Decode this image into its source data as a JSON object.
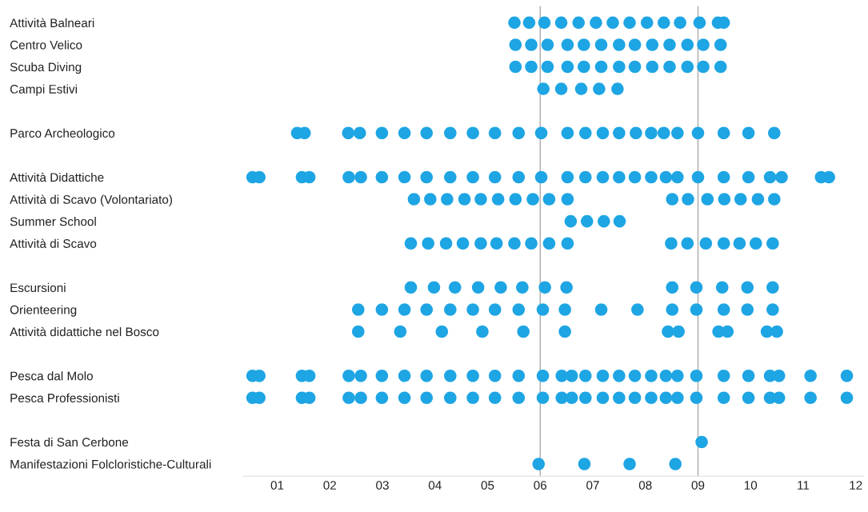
{
  "chart_data": {
    "type": "scatter",
    "orientation": "horizontal",
    "marker": "circle",
    "grid": false,
    "legend": false,
    "categories": [
      "Attività Balneari",
      "Centro Velico",
      "Scuba Diving",
      "Campi Estivi",
      null,
      "Parco Archeologico",
      null,
      "Attività Didattiche",
      "Attività di Scavo (Volontariato)",
      "Summer School",
      "Attività di Scavo",
      null,
      "Escursioni",
      "Orienteering",
      "Attività didattiche nel Bosco",
      null,
      "Pesca dal Molo",
      "Pesca Professionisti",
      null,
      "Festa di San Cerbone",
      "Manifestazioni Folcloristiche-Culturali"
    ],
    "xlim": [
      0.35,
      12.15
    ],
    "xticks": [
      {
        "value": 1,
        "label": "01"
      },
      {
        "value": 2,
        "label": "02"
      },
      {
        "value": 3,
        "label": "03"
      },
      {
        "value": 4,
        "label": "04"
      },
      {
        "value": 5,
        "label": "05"
      },
      {
        "value": 6,
        "label": "06"
      },
      {
        "value": 7,
        "label": "07"
      },
      {
        "value": 8,
        "label": "08"
      },
      {
        "value": 9,
        "label": "09"
      },
      {
        "value": 10,
        "label": "10"
      },
      {
        "value": 11,
        "label": "11"
      },
      {
        "value": 12,
        "label": "12"
      }
    ],
    "ref_lines": [
      {
        "axis": "x",
        "value": 6,
        "color": "#aaaaaa"
      },
      {
        "axis": "x",
        "value": 9,
        "color": "#aaaaaa"
      }
    ],
    "series": [
      {
        "color": "#1ea5e3",
        "values": [
          5.51,
          5.53,
          5.53,
          6.06,
          null,
          1.38,
          null,
          0.53,
          3.6,
          6.58,
          3.54,
          null,
          3.54,
          2.54,
          2.54,
          null,
          0.53,
          0.53,
          null,
          9.07,
          5.97
        ]
      },
      {
        "color": "#1ea5e3",
        "values": [
          5.79,
          5.83,
          5.83,
          6.4,
          null,
          1.52,
          null,
          0.66,
          3.91,
          6.89,
          3.87,
          null,
          3.98,
          2.99,
          3.34,
          null,
          0.66,
          0.66,
          null,
          null,
          6.84
        ]
      },
      {
        "color": "#1ea5e3",
        "values": [
          6.08,
          6.14,
          6.14,
          6.78,
          null,
          2.35,
          null,
          1.47,
          4.23,
          7.21,
          4.21,
          null,
          4.38,
          3.42,
          4.13,
          null,
          1.47,
          1.47,
          null,
          null,
          7.7
        ]
      },
      {
        "color": "#1ea5e3",
        "values": [
          6.4,
          6.52,
          6.52,
          7.12,
          null,
          2.57,
          null,
          1.61,
          4.56,
          7.51,
          4.53,
          null,
          4.82,
          3.84,
          4.9,
          null,
          1.61,
          1.61,
          null,
          null,
          8.57
        ]
      },
      {
        "color": "#1ea5e3",
        "values": [
          6.73,
          6.83,
          6.83,
          7.47,
          null,
          2.99,
          null,
          2.36,
          4.87,
          null,
          4.87,
          null,
          5.25,
          4.29,
          5.68,
          null,
          2.36,
          2.36,
          null,
          null,
          null
        ]
      },
      {
        "color": "#1ea5e3",
        "values": [
          7.06,
          7.16,
          7.16,
          null,
          null,
          3.42,
          null,
          2.59,
          5.2,
          null,
          5.17,
          null,
          5.66,
          4.72,
          6.47,
          null,
          2.59,
          2.59,
          null,
          null,
          null
        ]
      },
      {
        "color": "#1ea5e3",
        "values": [
          7.38,
          7.5,
          7.5,
          null,
          null,
          3.84,
          null,
          2.99,
          5.53,
          null,
          5.51,
          null,
          6.09,
          5.14,
          8.43,
          null,
          2.99,
          2.99,
          null,
          null,
          null
        ]
      },
      {
        "color": "#1ea5e3",
        "values": [
          7.7,
          7.8,
          7.8,
          null,
          null,
          4.29,
          null,
          3.42,
          5.86,
          null,
          5.83,
          null,
          6.5,
          5.59,
          8.63,
          null,
          3.42,
          3.42,
          null,
          null,
          null
        ]
      },
      {
        "color": "#1ea5e3",
        "values": [
          8.03,
          8.13,
          8.13,
          null,
          null,
          4.72,
          null,
          3.84,
          6.17,
          null,
          6.17,
          null,
          8.51,
          6.05,
          9.39,
          null,
          3.84,
          3.84,
          null,
          null,
          null
        ]
      },
      {
        "color": "#1ea5e3",
        "values": [
          8.35,
          8.46,
          8.46,
          null,
          null,
          5.14,
          null,
          4.29,
          6.52,
          null,
          6.52,
          null,
          8.97,
          6.47,
          9.56,
          null,
          4.29,
          4.29,
          null,
          null,
          null
        ]
      },
      {
        "color": "#1ea5e3",
        "values": [
          8.66,
          8.8,
          8.8,
          null,
          null,
          5.59,
          null,
          4.72,
          8.51,
          null,
          8.49,
          null,
          9.46,
          7.16,
          10.31,
          null,
          4.72,
          4.72,
          null,
          null,
          null
        ]
      },
      {
        "color": "#1ea5e3",
        "values": [
          9.03,
          9.1,
          9.1,
          null,
          null,
          6.02,
          null,
          5.14,
          8.81,
          null,
          8.8,
          null,
          9.94,
          7.85,
          10.5,
          null,
          5.14,
          5.14,
          null,
          null,
          null
        ]
      },
      {
        "color": "#1ea5e3",
        "values": [
          9.38,
          9.43,
          9.43,
          null,
          null,
          6.52,
          null,
          5.59,
          9.18,
          null,
          9.15,
          null,
          10.42,
          8.51,
          null,
          null,
          5.59,
          5.59,
          null,
          null,
          null
        ]
      },
      {
        "color": "#1ea5e3",
        "values": [
          9.49,
          null,
          null,
          null,
          null,
          6.86,
          null,
          6.02,
          9.5,
          null,
          9.49,
          null,
          null,
          8.97,
          null,
          null,
          6.05,
          6.05,
          null,
          null,
          null
        ]
      },
      {
        "color": "#1ea5e3",
        "values": [
          null,
          null,
          null,
          null,
          null,
          7.19,
          null,
          6.52,
          9.81,
          null,
          9.79,
          null,
          null,
          9.49,
          null,
          null,
          6.41,
          6.41,
          null,
          null,
          null
        ]
      },
      {
        "color": "#1ea5e3",
        "values": [
          null,
          null,
          null,
          null,
          null,
          7.5,
          null,
          6.86,
          10.14,
          null,
          10.1,
          null,
          null,
          9.94,
          null,
          null,
          6.6,
          6.6,
          null,
          null,
          null
        ]
      },
      {
        "color": "#1ea5e3",
        "values": [
          null,
          null,
          null,
          null,
          null,
          7.82,
          null,
          7.19,
          10.45,
          null,
          10.42,
          null,
          null,
          10.42,
          null,
          null,
          6.86,
          6.86,
          null,
          null,
          null
        ]
      },
      {
        "color": "#1ea5e3",
        "values": [
          null,
          null,
          null,
          null,
          null,
          8.11,
          null,
          7.5,
          null,
          null,
          null,
          null,
          null,
          null,
          null,
          null,
          7.19,
          7.19,
          null,
          null,
          null
        ]
      },
      {
        "color": "#1ea5e3",
        "values": [
          null,
          null,
          null,
          null,
          null,
          8.35,
          null,
          7.8,
          null,
          null,
          null,
          null,
          null,
          null,
          null,
          null,
          7.5,
          7.5,
          null,
          null,
          null
        ]
      },
      {
        "color": "#1ea5e3",
        "values": [
          null,
          null,
          null,
          null,
          null,
          8.61,
          null,
          8.11,
          null,
          null,
          null,
          null,
          null,
          null,
          null,
          null,
          7.8,
          7.8,
          null,
          null,
          null
        ]
      },
      {
        "color": "#1ea5e3",
        "values": [
          null,
          null,
          null,
          null,
          null,
          9.0,
          null,
          8.39,
          null,
          null,
          null,
          null,
          null,
          null,
          null,
          null,
          8.11,
          8.11,
          null,
          null,
          null
        ]
      },
      {
        "color": "#1ea5e3",
        "values": [
          null,
          null,
          null,
          null,
          null,
          9.49,
          null,
          8.61,
          null,
          null,
          null,
          null,
          null,
          null,
          null,
          null,
          8.39,
          8.39,
          null,
          null,
          null
        ]
      },
      {
        "color": "#1ea5e3",
        "values": [
          null,
          null,
          null,
          null,
          null,
          9.96,
          null,
          9.0,
          null,
          null,
          null,
          null,
          null,
          null,
          null,
          null,
          8.61,
          8.61,
          null,
          null,
          null
        ]
      },
      {
        "color": "#1ea5e3",
        "values": [
          null,
          null,
          null,
          null,
          null,
          10.45,
          null,
          9.49,
          null,
          null,
          null,
          null,
          null,
          null,
          null,
          null,
          8.97,
          8.97,
          null,
          null,
          null
        ]
      },
      {
        "color": "#1ea5e3",
        "values": [
          null,
          null,
          null,
          null,
          null,
          null,
          null,
          9.96,
          null,
          null,
          null,
          null,
          null,
          null,
          null,
          null,
          9.49,
          9.49,
          null,
          null,
          null
        ]
      },
      {
        "color": "#1ea5e3",
        "values": [
          null,
          null,
          null,
          null,
          null,
          null,
          null,
          10.37,
          null,
          null,
          null,
          null,
          null,
          null,
          null,
          null,
          9.96,
          9.96,
          null,
          null,
          null
        ]
      },
      {
        "color": "#1ea5e3",
        "values": [
          null,
          null,
          null,
          null,
          null,
          null,
          null,
          10.59,
          null,
          null,
          null,
          null,
          null,
          null,
          null,
          null,
          10.37,
          10.37,
          null,
          null,
          null
        ]
      },
      {
        "color": "#1ea5e3",
        "values": [
          null,
          null,
          null,
          null,
          null,
          null,
          null,
          11.34,
          null,
          null,
          null,
          null,
          null,
          null,
          null,
          null,
          10.54,
          10.54,
          null,
          null,
          null
        ]
      },
      {
        "color": "#1ea5e3",
        "values": [
          null,
          null,
          null,
          null,
          null,
          null,
          null,
          11.49,
          null,
          null,
          null,
          null,
          null,
          null,
          null,
          null,
          11.14,
          11.14,
          null,
          null,
          null
        ]
      },
      {
        "color": "#1ea5e3",
        "values": [
          null,
          null,
          null,
          null,
          null,
          null,
          null,
          null,
          null,
          null,
          null,
          null,
          null,
          null,
          null,
          null,
          11.83,
          11.83,
          null,
          null,
          null
        ]
      }
    ]
  }
}
